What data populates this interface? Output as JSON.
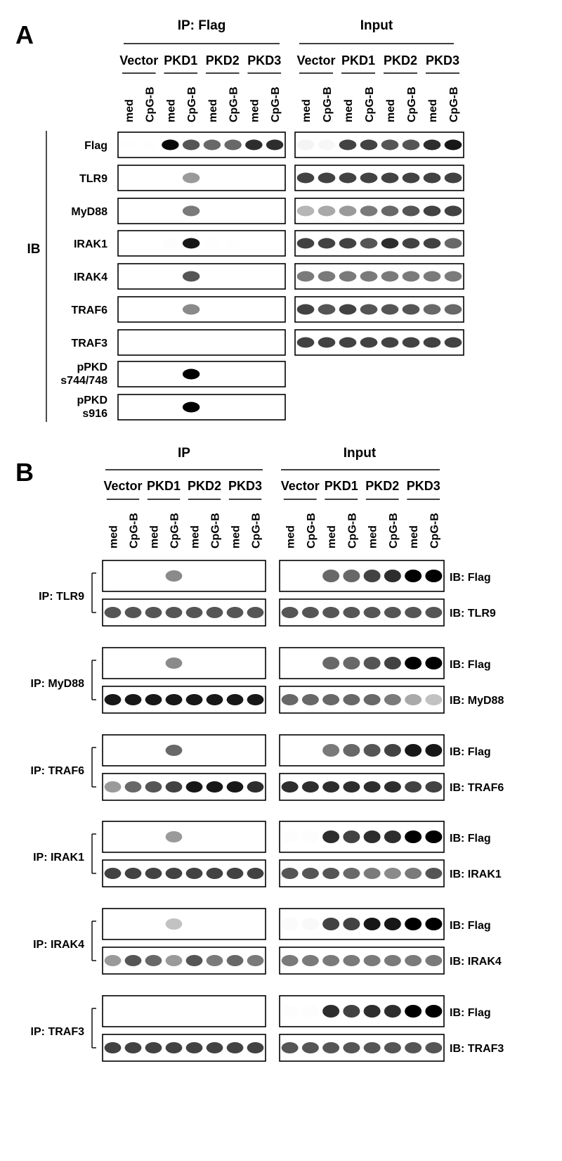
{
  "panels": {
    "A": {
      "label": "A",
      "ip_header": "IP: Flag",
      "input_header": "Input",
      "groups": [
        "Vector",
        "PKD1",
        "PKD2",
        "PKD3"
      ],
      "lanes": [
        "med",
        "CpG-B",
        "med",
        "CpG-B",
        "med",
        "CpG-B",
        "med",
        "CpG-B"
      ],
      "ib_label": "IB",
      "rows": [
        {
          "label": [
            "Flag"
          ],
          "ip": [
            0.02,
            0.02,
            0.98,
            0.8,
            0.75,
            0.75,
            0.9,
            0.9
          ],
          "input": [
            0.15,
            0.12,
            0.85,
            0.85,
            0.8,
            0.8,
            0.9,
            0.95
          ]
        },
        {
          "label": [
            "TLR9"
          ],
          "ip": [
            0,
            0,
            0,
            0.6,
            0,
            0,
            0,
            0
          ],
          "input": [
            0.85,
            0.85,
            0.85,
            0.85,
            0.85,
            0.85,
            0.85,
            0.85
          ]
        },
        {
          "label": [
            "MyD88"
          ],
          "ip": [
            0,
            0,
            0,
            0.7,
            0,
            0,
            0,
            0
          ],
          "input": [
            0.5,
            0.55,
            0.6,
            0.7,
            0.75,
            0.8,
            0.85,
            0.85
          ]
        },
        {
          "label": [
            "IRAK1"
          ],
          "ip": [
            0,
            0,
            0.05,
            0.95,
            0.03,
            0.03,
            0,
            0
          ],
          "input": [
            0.85,
            0.85,
            0.85,
            0.8,
            0.9,
            0.85,
            0.85,
            0.75
          ]
        },
        {
          "label": [
            "IRAK4"
          ],
          "ip": [
            0,
            0,
            0,
            0.8,
            0,
            0,
            0,
            0
          ],
          "input": [
            0.7,
            0.7,
            0.7,
            0.7,
            0.7,
            0.7,
            0.7,
            0.7
          ]
        },
        {
          "label": [
            "TRAF6"
          ],
          "ip": [
            0,
            0,
            0,
            0.65,
            0,
            0,
            0,
            0
          ],
          "input": [
            0.85,
            0.8,
            0.85,
            0.8,
            0.8,
            0.8,
            0.75,
            0.75
          ]
        },
        {
          "label": [
            "TRAF3"
          ],
          "ip": [
            0,
            0,
            0,
            0,
            0,
            0,
            0,
            0
          ],
          "input": [
            0.85,
            0.85,
            0.85,
            0.85,
            0.85,
            0.85,
            0.85,
            0.85
          ]
        },
        {
          "label": [
            "pPKD",
            "s744/748"
          ],
          "ip": [
            0,
            0,
            0,
            1,
            0,
            0,
            0,
            0
          ],
          "input": null
        },
        {
          "label": [
            "pPKD",
            "s916"
          ],
          "ip": [
            0,
            0,
            0,
            1,
            0,
            0,
            0,
            0
          ],
          "input": null
        }
      ]
    },
    "B": {
      "label": "B",
      "ip_header": "IP",
      "input_header": "Input",
      "groups": [
        "Vector",
        "PKD1",
        "PKD2",
        "PKD3"
      ],
      "lanes": [
        "med",
        "CpG-B",
        "med",
        "CpG-B",
        "med",
        "CpG-B",
        "med",
        "CpG-B"
      ],
      "blocks": [
        {
          "ip_label": "IP: TLR9",
          "top_ib": "IB: Flag",
          "bottom_ib": "IB: TLR9",
          "top_ip": [
            0,
            0,
            0,
            0.65,
            0,
            0,
            0,
            0
          ],
          "top_input": [
            0,
            0,
            0.75,
            0.75,
            0.85,
            0.9,
            1,
            1
          ],
          "bottom_ip": [
            0.8,
            0.8,
            0.8,
            0.8,
            0.8,
            0.8,
            0.8,
            0.8
          ],
          "bottom_input": [
            0.8,
            0.8,
            0.8,
            0.8,
            0.8,
            0.8,
            0.8,
            0.8
          ]
        },
        {
          "ip_label": "IP: MyD88",
          "top_ib": "IB: Flag",
          "bottom_ib": "IB: MyD88",
          "top_ip": [
            0,
            0,
            0,
            0.65,
            0,
            0,
            0,
            0
          ],
          "top_input": [
            0,
            0,
            0.75,
            0.75,
            0.8,
            0.85,
            1,
            1
          ],
          "bottom_ip": [
            0.95,
            0.95,
            0.95,
            0.95,
            0.95,
            0.95,
            0.95,
            0.95
          ],
          "bottom_input": [
            0.75,
            0.75,
            0.75,
            0.75,
            0.75,
            0.7,
            0.55,
            0.45
          ]
        },
        {
          "ip_label": "IP: TRAF6",
          "top_ib": "IB: Flag",
          "bottom_ib": "IB: TRAF6",
          "top_ip": [
            0,
            0,
            0,
            0.75,
            0,
            0,
            0,
            0
          ],
          "top_input": [
            0,
            0,
            0.7,
            0.75,
            0.8,
            0.85,
            0.95,
            0.95
          ],
          "bottom_ip": [
            0.6,
            0.75,
            0.8,
            0.85,
            0.95,
            0.95,
            0.95,
            0.9
          ],
          "bottom_input": [
            0.9,
            0.9,
            0.9,
            0.9,
            0.9,
            0.9,
            0.85,
            0.85
          ]
        },
        {
          "ip_label": "IP: IRAK1",
          "top_ib": "IB: Flag",
          "bottom_ib": "IB: IRAK1",
          "top_ip": [
            0,
            0,
            0,
            0.6,
            0,
            0,
            0,
            0
          ],
          "top_input": [
            0.05,
            0.05,
            0.9,
            0.85,
            0.9,
            0.9,
            1,
            1
          ],
          "bottom_ip": [
            0.85,
            0.85,
            0.85,
            0.85,
            0.85,
            0.85,
            0.85,
            0.85
          ],
          "bottom_input": [
            0.8,
            0.8,
            0.8,
            0.75,
            0.7,
            0.65,
            0.7,
            0.8
          ]
        },
        {
          "ip_label": "IP: IRAK4",
          "top_ib": "IB: Flag",
          "bottom_ib": "IB: IRAK4",
          "top_ip": [
            0,
            0,
            0,
            0.45,
            0,
            0,
            0,
            0
          ],
          "top_input": [
            0.08,
            0.1,
            0.85,
            0.85,
            0.95,
            0.95,
            1,
            1
          ],
          "bottom_ip": [
            0.6,
            0.8,
            0.75,
            0.6,
            0.8,
            0.7,
            0.75,
            0.7
          ],
          "bottom_input": [
            0.7,
            0.7,
            0.7,
            0.7,
            0.7,
            0.7,
            0.7,
            0.7
          ]
        },
        {
          "ip_label": "IP: TRAF3",
          "top_ib": "IB: Flag",
          "bottom_ib": "IB: TRAF3",
          "top_ip": [
            0,
            0,
            0,
            0,
            0,
            0,
            0,
            0
          ],
          "top_input": [
            0.05,
            0.05,
            0.9,
            0.85,
            0.9,
            0.9,
            1,
            1
          ],
          "bottom_ip": [
            0.85,
            0.85,
            0.85,
            0.85,
            0.85,
            0.85,
            0.85,
            0.85
          ],
          "bottom_input": [
            0.8,
            0.8,
            0.8,
            0.8,
            0.8,
            0.8,
            0.8,
            0.8
          ]
        }
      ]
    }
  }
}
